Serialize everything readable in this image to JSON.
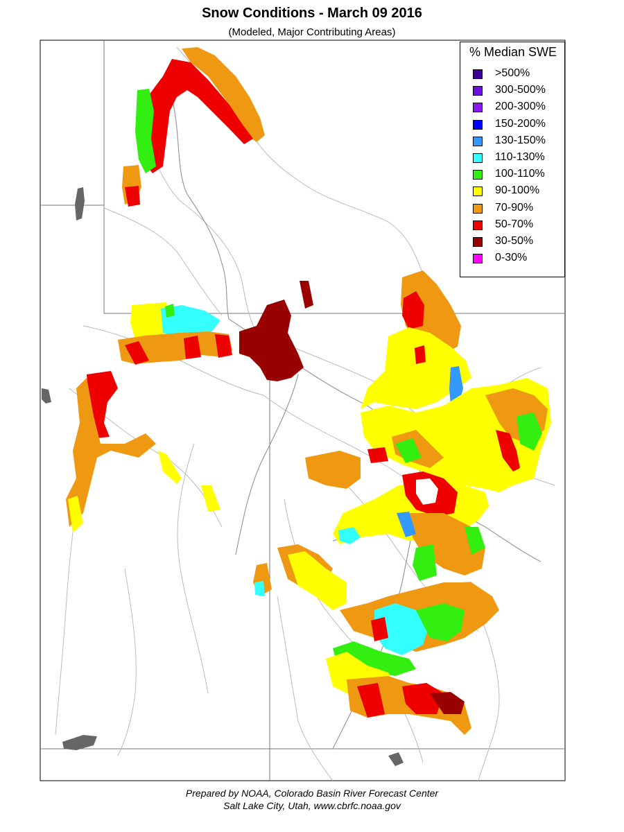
{
  "title": "Snow Conditions - March 09 2016",
  "subtitle": "(Modeled, Major Contributing Areas)",
  "legend": {
    "title": "% Median SWE",
    "items": [
      {
        "label": ">500%",
        "color": "#3d0099"
      },
      {
        "label": "300-500%",
        "color": "#6a0fe0"
      },
      {
        "label": "200-300%",
        "color": "#8c1af0"
      },
      {
        "label": "150-200%",
        "color": "#0000ff"
      },
      {
        "label": "130-150%",
        "color": "#3399ff"
      },
      {
        "label": "110-130%",
        "color": "#33ffff"
      },
      {
        "label": "100-110%",
        "color": "#33ee11"
      },
      {
        "label": "90-100%",
        "color": "#ffff00"
      },
      {
        "label": "70-90%",
        "color": "#ee9911"
      },
      {
        "label": "50-70%",
        "color": "#ee0000"
      },
      {
        "label": "30-50%",
        "color": "#990000"
      },
      {
        "label": "0-30%",
        "color": "#ff00ff"
      }
    ]
  },
  "credits": {
    "line1": "Prepared by NOAA, Colorado Basin River Forecast Center",
    "line2": "Salt Lake City, Utah, www.cbrfc.noaa.gov"
  }
}
